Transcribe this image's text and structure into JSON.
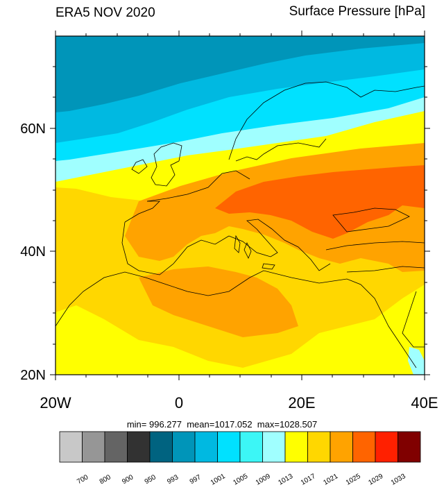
{
  "title_left": "ERA5 NOV 2020",
  "title_right": "Surface Pressure [hPa]",
  "lat_labels": [
    "60N",
    "40N",
    "20N"
  ],
  "lon_labels": [
    "20W",
    "0",
    "20E",
    "40E"
  ],
  "stats": {
    "min_label": "min= 996.277",
    "mean_label": "mean=1017.052",
    "max_label": "max=1028.507"
  },
  "colorbar": {
    "labels": [
      "700",
      "800",
      "900",
      "950",
      "993",
      "997",
      "1001",
      "1005",
      "1009",
      "1013",
      "1017",
      "1021",
      "1025",
      "1029",
      "1033"
    ],
    "colors": [
      "#c8c8c8",
      "#969696",
      "#646464",
      "#323232",
      "#006380",
      "#0095b9",
      "#00b9e1",
      "#00e1ff",
      "#3cf6f6",
      "#a0ffff",
      "#ffff00",
      "#ffd700",
      "#ffa300",
      "#ff6400",
      "#ff2000",
      "#800000"
    ]
  },
  "map_colors": {
    "c1001": "#00b9e1",
    "c997": "#0095b9",
    "c1005": "#00e1ff",
    "c1009": "#a0ffff",
    "c1013": "#ffff00",
    "c1017": "#ffd700",
    "c1021": "#ffa300",
    "c1025": "#ff6400"
  }
}
